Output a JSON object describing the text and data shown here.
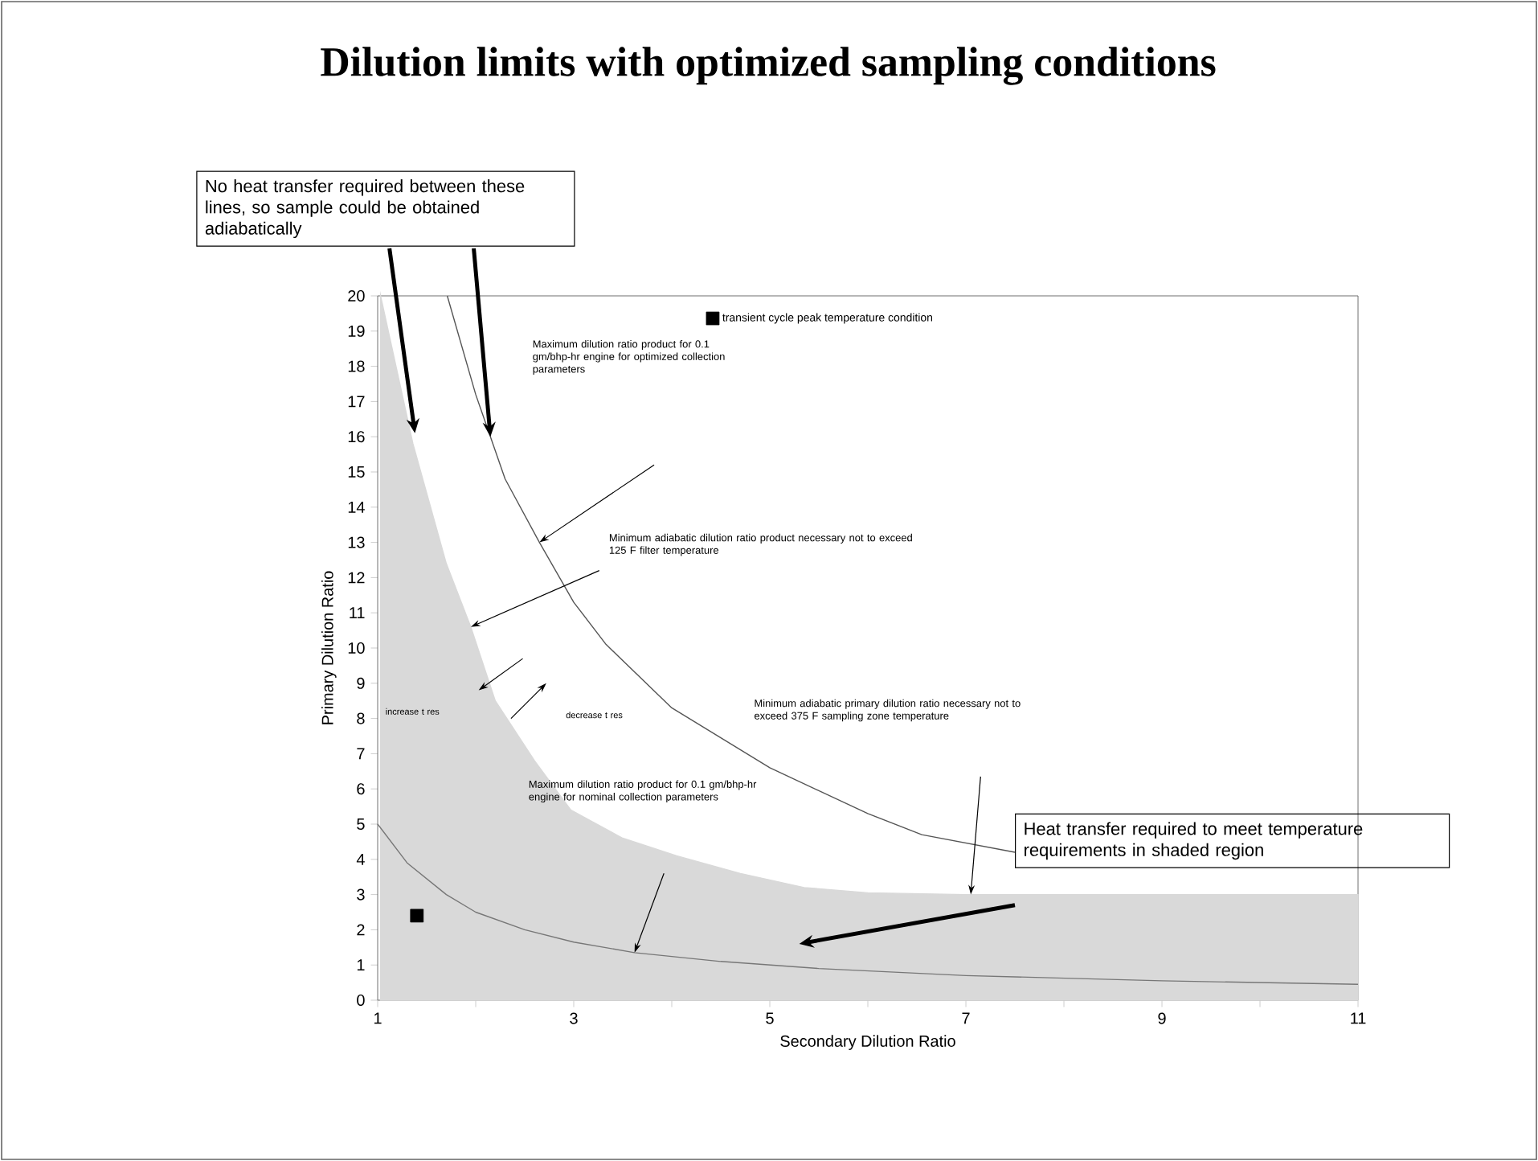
{
  "chart_data": {
    "type": "line",
    "title": "Dilution limits with optimized sampling conditions",
    "xlabel": "Secondary Dilution Ratio",
    "ylabel": "Primary Dilution Ratio",
    "xlim": [
      1,
      11
    ],
    "ylim": [
      0,
      20
    ],
    "xticks": [
      1,
      {
        "value": 2,
        "label": null
      },
      3,
      {
        "value": 4,
        "label": null
      },
      5,
      {
        "value": 6,
        "label": null
      },
      7,
      {
        "value": 8,
        "label": null
      },
      9,
      {
        "value": 10,
        "label": null
      },
      11
    ],
    "yticks": [
      0,
      1,
      2,
      3,
      4,
      5,
      6,
      7,
      8,
      9,
      10,
      11,
      12,
      13,
      14,
      15,
      16,
      17,
      18,
      19,
      20
    ],
    "legend": "top right",
    "series": [
      {
        "color": "#555555",
        "x": [
          1.71,
          2,
          2.3,
          2.65,
          3,
          3.33,
          4,
          5,
          6,
          6.55,
          7.5
        ],
        "values": [
          20,
          17.2,
          14.8,
          13,
          11.3,
          10.1,
          8.3,
          6.6,
          5.3,
          4.7,
          4.2
        ]
      },
      {
        "type": "area",
        "color": "#d9d9d9",
        "x": [
          1.03,
          1.36,
          1.7,
          1.95,
          2.2,
          2.6,
          2.97,
          3.5,
          4.05,
          4.7,
          5.35,
          6,
          7,
          11
        ],
        "values": [
          20,
          15.8,
          12.4,
          10.6,
          8.5,
          6.8,
          5.4,
          4.6,
          4.1,
          3.6,
          3.2,
          3.05,
          3,
          3
        ]
      },
      {
        "color": "#777777",
        "x": [
          1,
          1.3,
          1.7,
          2,
          2.5,
          3,
          3.62,
          4.5,
          5.5,
          7,
          9,
          11
        ],
        "values": [
          5,
          3.9,
          3,
          2.5,
          2,
          1.65,
          1.35,
          1.1,
          0.9,
          0.7,
          0.55,
          0.45
        ]
      },
      {
        "type": "scatter",
        "name": "transient cycle peak temperature condition",
        "color": "#000000",
        "marker": "square",
        "x": [
          1.4
        ],
        "values": [
          2.4
        ]
      }
    ],
    "annotations": [
      {
        "text": "No heat transfer required between these lines, so sample could be obtained adiabatically",
        "x": 1.38,
        "y": 16.1
      },
      "Heat transfer required to meet temperature requirements in shaded region",
      "Maximum dilution ratio product for 0.1 gm/bhp-hr engine for optimized collection parameters",
      "Minimum adiabatic dilution ratio product necessary not to exceed 125 F filter temperature",
      "increase t res",
      "decrease t res",
      "Minimum adiabatic primary dilution ratio necessary not to exceed 375 F sampling zone temperature",
      "Maximum dilution ratio product for 0.1 gm/bhp-hr engine for nominal collection parameters"
    ]
  }
}
